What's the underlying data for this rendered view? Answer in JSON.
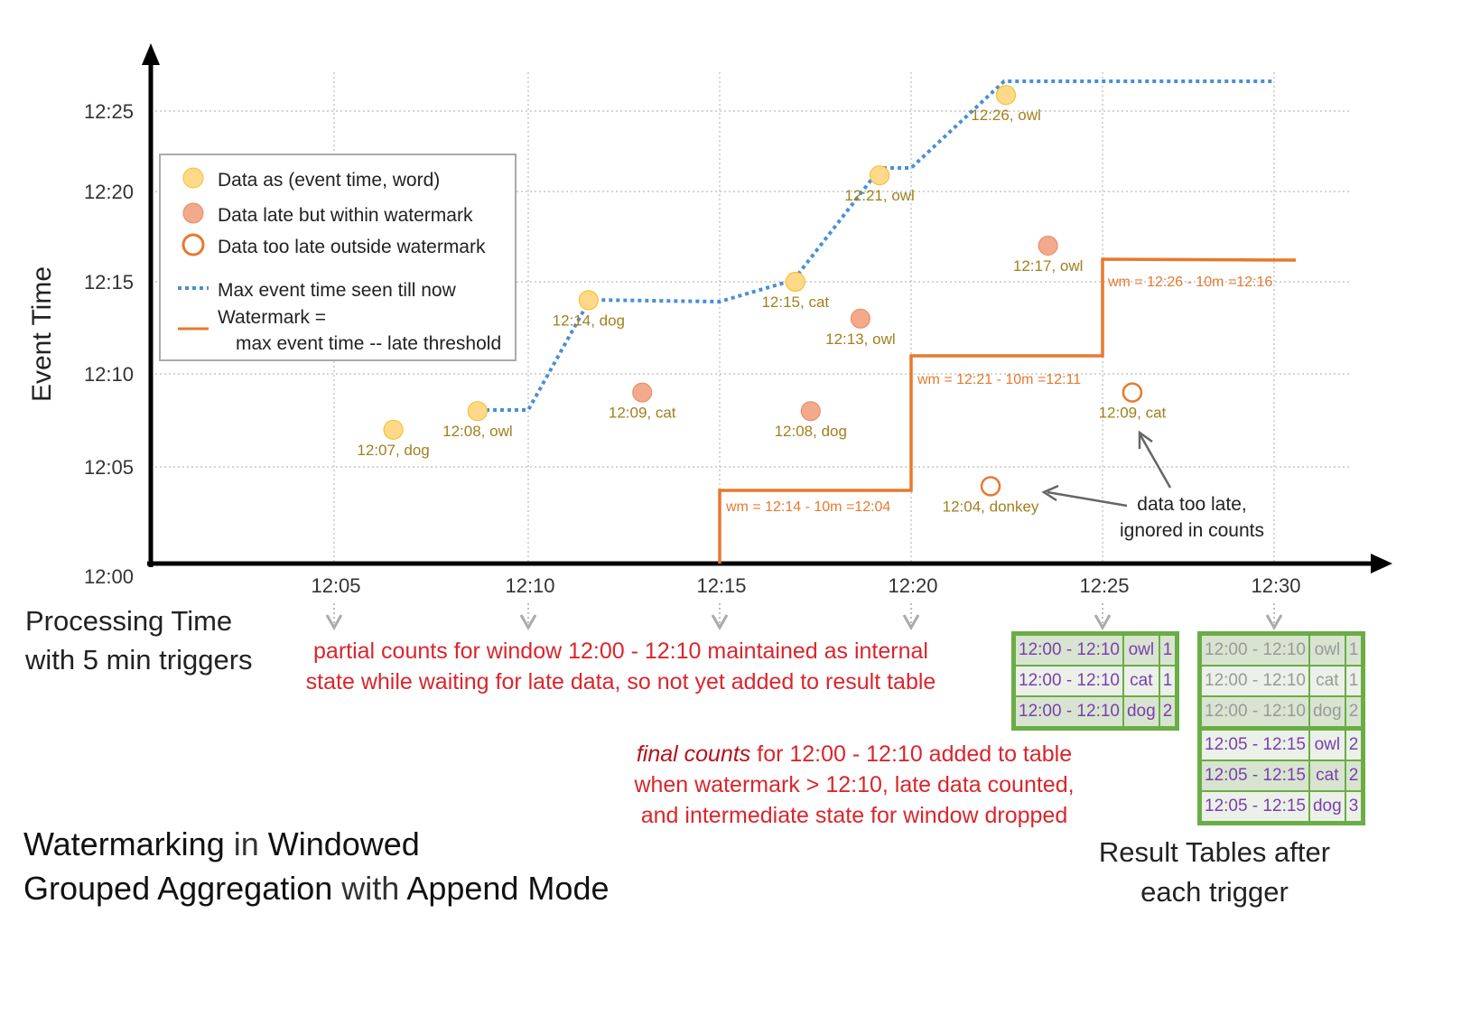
{
  "axes": {
    "y_label": "Event Time",
    "x_label_line1": "Processing Time",
    "x_label_line2": "with 5 min triggers",
    "y_ticks": [
      "12:00",
      "12:05",
      "12:10",
      "12:15",
      "12:20",
      "12:25"
    ],
    "x_ticks": [
      "12:05",
      "12:10",
      "12:15",
      "12:20",
      "12:25",
      "12:30"
    ]
  },
  "legend": {
    "on_time": "Data as (event time, word)",
    "late": "Data late but within watermark",
    "too_late": "Data too late outside watermark",
    "max_line": "Max event time seen till now",
    "watermark_line1": "Watermark =",
    "watermark_line2": "max event time -- late threshold"
  },
  "colors": {
    "on_time": "#ffd98a",
    "late": "#f2a98c",
    "too_late": "#e8782f",
    "max_line": "#4a8fd6",
    "watermark": "#e8782f",
    "table_border": "#6aad46",
    "red_text": "#d9262c",
    "point_label": "#a0801e"
  },
  "points": [
    {
      "label": "12:07, dog",
      "kind": "on_time",
      "proc_min": 6.5,
      "event_min": 7
    },
    {
      "label": "12:08, owl",
      "kind": "on_time",
      "proc_min": 8.7,
      "event_min": 8
    },
    {
      "label": "12:14, dog",
      "kind": "on_time",
      "proc_min": 11.6,
      "event_min": 14
    },
    {
      "label": "12:09, cat",
      "kind": "late",
      "proc_min": 13.0,
      "event_min": 9
    },
    {
      "label": "12:15, cat",
      "kind": "on_time",
      "proc_min": 17.0,
      "event_min": 15
    },
    {
      "label": "12:08, dog",
      "kind": "late",
      "proc_min": 17.4,
      "event_min": 8
    },
    {
      "label": "12:13, owl",
      "kind": "late",
      "proc_min": 18.7,
      "event_min": 13
    },
    {
      "label": "12:21, owl",
      "kind": "on_time",
      "proc_min": 19.2,
      "event_min": 21
    },
    {
      "label": "12:04, donkey",
      "kind": "too_late",
      "proc_min": 22.1,
      "event_min": 4
    },
    {
      "label": "12:26, owl",
      "kind": "on_time",
      "proc_min": 22.5,
      "event_min": 26
    },
    {
      "label": "12:17, owl",
      "kind": "late",
      "proc_min": 23.6,
      "event_min": 17
    },
    {
      "label": "12:09, cat",
      "kind": "too_late",
      "proc_min": 25.8,
      "event_min": 9
    }
  ],
  "watermark_labels": [
    "wm = 12:14 - 10m =12:04",
    "wm = 12:21 - 10m =12:11",
    "wm = 12:26 - 10m =12:16"
  ],
  "annotations": {
    "too_late_1": "data too late,",
    "too_late_2": "ignored in counts",
    "partial_1": "partial counts for window 12:00 - 12:10 maintained as internal",
    "partial_2": "state while waiting for late data, so not yet added  to result table",
    "final_em": "final counts",
    "final_1": " for 12:00 - 12:10 added to table",
    "final_2": "when watermark > 12:10, late data counted,",
    "final_3": "and intermediate state for window dropped"
  },
  "tables": {
    "t1": [
      [
        "12:00 - 12:10",
        "owl",
        "1"
      ],
      [
        "12:00 - 12:10",
        "cat",
        "1"
      ],
      [
        "12:00 - 12:10",
        "dog",
        "2"
      ]
    ],
    "t2": [
      [
        "12:00 - 12:10",
        "owl",
        "1"
      ],
      [
        "12:00 - 12:10",
        "cat",
        "1"
      ],
      [
        "12:00 - 12:10",
        "dog",
        "2"
      ],
      [
        "12:05 - 12:15",
        "owl",
        "2"
      ],
      [
        "12:05 - 12:15",
        "cat",
        "2"
      ],
      [
        "12:05 - 12:15",
        "dog",
        "3"
      ]
    ],
    "caption_1": "Result Tables after",
    "caption_2": "each trigger"
  },
  "title": {
    "b1": "Watermarking",
    "t1": " in ",
    "b2": "Windowed",
    "b3": "Grouped Aggregation",
    "t2": " with ",
    "b4": "Append Mode"
  }
}
